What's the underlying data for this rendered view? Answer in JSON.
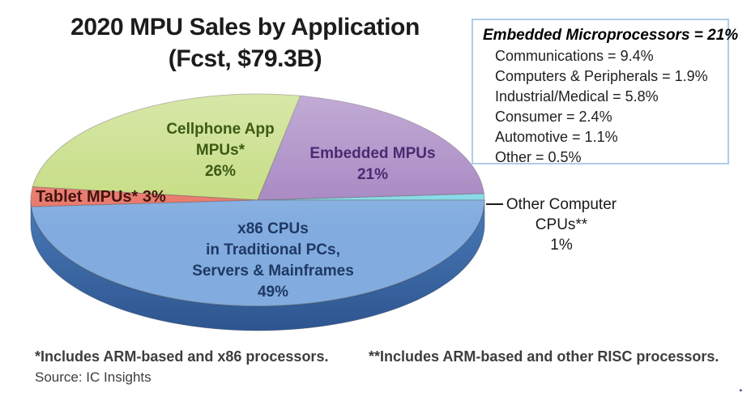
{
  "title": {
    "line1": "2020 MPU Sales by Application",
    "line2": "(Fcst, $79.3B)"
  },
  "pie_labels": {
    "cellphone": {
      "line1": "Cellphone App",
      "line2": "MPUs*",
      "line3": "26%"
    },
    "embedded": {
      "line1": "Embedded MPUs",
      "line2": "21%"
    },
    "tablet": {
      "text": "Tablet MPUs* 3%"
    },
    "x86": {
      "line1": "x86 CPUs",
      "line2": "in Traditional PCs,",
      "line3": "Servers & Mainframes",
      "line4": "49%"
    },
    "other": {
      "line1": "Other Computer",
      "line2": "CPUs**",
      "line3": "1%"
    }
  },
  "footnotes": {
    "note1": "*Includes ARM-based and x86 processors.",
    "note2": "**Includes ARM-based and other RISC processors.",
    "source": "Source:  IC Insights",
    "trailing_dot": "."
  },
  "colors": {
    "rim_top": "#4A7BB8",
    "rim_bottom": "#2E5590",
    "legend_border": "#AFCBE9",
    "leader_line": "#1a1a1a"
  },
  "chart_data": {
    "type": "pie",
    "style": "3d",
    "title": "2020 MPU Sales by Application",
    "subtitle": "(Fcst, $79.3B)",
    "total_forecast": "$79.3B",
    "year": 2020,
    "legend_position": "labels-on-slices",
    "slices": [
      {
        "id": "x86",
        "label": "x86 CPUs in Traditional PCs, Servers & Mainframes",
        "value": 49,
        "color": "#82ACDF",
        "text_color": "#1F3864"
      },
      {
        "id": "cellphone",
        "label": "Cellphone App MPUs*",
        "value": 26,
        "color": "#C4DC7F",
        "text_color": "#3C5A14"
      },
      {
        "id": "embedded",
        "label": "Embedded MPUs",
        "value": 21,
        "color": "#A584C1",
        "text_color": "#4A2A70"
      },
      {
        "id": "tablet",
        "label": "Tablet MPUs*",
        "value": 3,
        "color": "#E87467",
        "text_color": "#441610"
      },
      {
        "id": "other",
        "label": "Other Computer CPUs**",
        "value": 1,
        "color": "#82D8E6",
        "text_color": "#1a1a1a"
      }
    ],
    "embedded_breakdown": {
      "title": "Embedded Microprocessors = 21%",
      "items": [
        {
          "label": "Communications",
          "value": 9.4
        },
        {
          "label": "Computers & Peripherals",
          "value": 1.9
        },
        {
          "label": "Industrial/Medical",
          "value": 5.8
        },
        {
          "label": "Consumer",
          "value": 2.4
        },
        {
          "label": "Automotive",
          "value": 1.1
        },
        {
          "label": "Other",
          "value": 0.5
        }
      ]
    }
  }
}
